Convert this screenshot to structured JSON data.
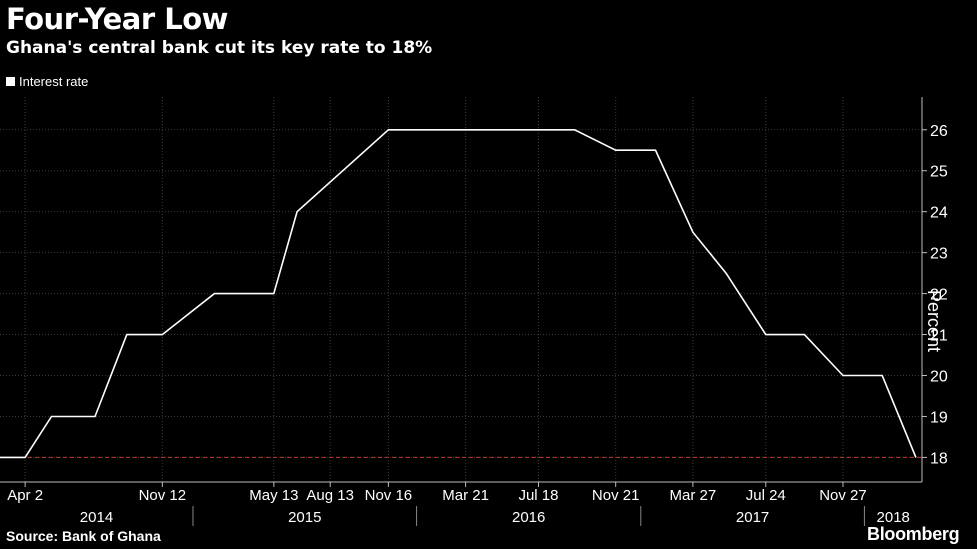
{
  "chart_data": {
    "type": "line",
    "title": "Four-Year Low",
    "subtitle": "Ghana's central bank cut its key rate to 18%",
    "ylabel": "Percent",
    "source": "Source: Bank of Ghana",
    "brand": "Bloomberg",
    "ylim": [
      17.4,
      26.8
    ],
    "yticks": [
      18,
      19,
      20,
      21,
      22,
      23,
      24,
      25,
      26
    ],
    "xlim": [
      "2014-02-20",
      "2018-04-05"
    ],
    "x_ticks": [
      {
        "date": "2014-04-02",
        "label": "Apr 2"
      },
      {
        "date": "2014-11-12",
        "label": "Nov 12"
      },
      {
        "date": "2015-05-13",
        "label": "May 13"
      },
      {
        "date": "2015-08-13",
        "label": "Aug 13"
      },
      {
        "date": "2015-11-16",
        "label": "Nov 16"
      },
      {
        "date": "2016-03-21",
        "label": "Mar 21"
      },
      {
        "date": "2016-07-18",
        "label": "Jul 18"
      },
      {
        "date": "2016-11-21",
        "label": "Nov 21"
      },
      {
        "date": "2017-03-27",
        "label": "Mar 27"
      },
      {
        "date": "2017-07-24",
        "label": "Jul 24"
      },
      {
        "date": "2017-11-27",
        "label": "Nov 27"
      }
    ],
    "years": [
      {
        "label": "2014",
        "start": "2014-02-20",
        "end": "2015-01-01"
      },
      {
        "label": "2015",
        "start": "2015-01-01",
        "end": "2016-01-01"
      },
      {
        "label": "2016",
        "start": "2016-01-01",
        "end": "2017-01-01"
      },
      {
        "label": "2017",
        "start": "2017-01-01",
        "end": "2018-01-01"
      },
      {
        "label": "2018",
        "start": "2018-01-01",
        "end": "2018-04-05"
      }
    ],
    "grid": true,
    "legend_position": "top-left",
    "reference_line": {
      "value": 18,
      "color": "#c0392b"
    },
    "series": [
      {
        "name": "Interest rate",
        "color": "#ffffff",
        "points": [
          {
            "x": "2014-02-20",
            "y": 18
          },
          {
            "x": "2014-04-02",
            "y": 18
          },
          {
            "x": "2014-05-15",
            "y": 19
          },
          {
            "x": "2014-07-25",
            "y": 19
          },
          {
            "x": "2014-09-15",
            "y": 21
          },
          {
            "x": "2014-11-12",
            "y": 21
          },
          {
            "x": "2015-02-05",
            "y": 22
          },
          {
            "x": "2015-05-13",
            "y": 22
          },
          {
            "x": "2015-06-20",
            "y": 24
          },
          {
            "x": "2015-11-16",
            "y": 26
          },
          {
            "x": "2016-09-15",
            "y": 26
          },
          {
            "x": "2016-11-21",
            "y": 25.5
          },
          {
            "x": "2017-01-25",
            "y": 25.5
          },
          {
            "x": "2017-03-27",
            "y": 23.5
          },
          {
            "x": "2017-05-20",
            "y": 22.5
          },
          {
            "x": "2017-07-24",
            "y": 21
          },
          {
            "x": "2017-09-25",
            "y": 21
          },
          {
            "x": "2017-11-27",
            "y": 20
          },
          {
            "x": "2018-01-30",
            "y": 20
          },
          {
            "x": "2018-03-26",
            "y": 18
          }
        ]
      }
    ]
  }
}
